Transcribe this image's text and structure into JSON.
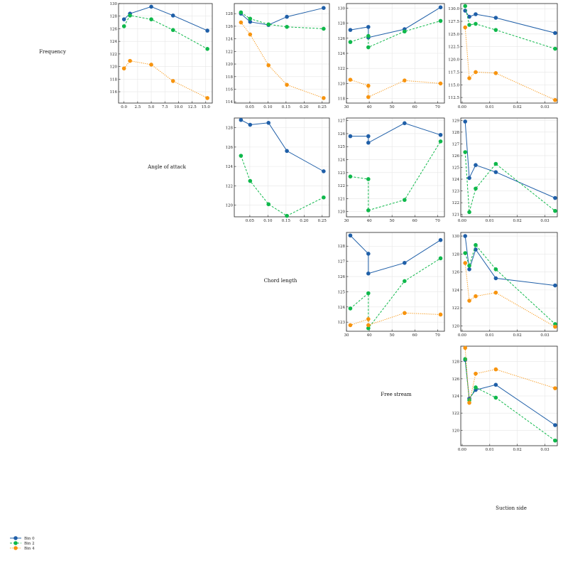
{
  "chart_data": {
    "type": "line",
    "layout": "upper-triangular scatter matrix",
    "series_names": [
      "Bin 0",
      "Bin 2",
      "Bin 4"
    ],
    "series_colors": [
      "#1f5fa8",
      "#0fb84b",
      "#f7940f"
    ],
    "series_styles": [
      "solid",
      "dashed",
      "dotted"
    ],
    "diagonal_labels": [
      "Frequency",
      "Angle of attack",
      "Chord length",
      "Free stream",
      "Suction side"
    ],
    "grid": true,
    "legend": "bottom-left",
    "panels": [
      {
        "row": 0,
        "col": 1,
        "xlim": [
          -1,
          16.2
        ],
        "ylim": [
          114.2,
          130
        ],
        "xticks": [
          0,
          2.5,
          5,
          7.5,
          10,
          12.5,
          15
        ],
        "xticklabels": [
          "0.0",
          "2.5",
          "5.0",
          "7.5",
          "10.0",
          "12.5",
          "15.0"
        ],
        "yticks": [
          116,
          118,
          120,
          122,
          124,
          126,
          128,
          130
        ],
        "yticklabels": [
          "116",
          "118",
          "120",
          "122",
          "124",
          "126",
          "128",
          "130"
        ],
        "series": [
          {
            "name": "Bin 0",
            "x": [
              0,
              1.1,
              5,
              9,
              15.3
            ],
            "y": [
              127.5,
              128.4,
              129.5,
              128.1,
              125.7
            ]
          },
          {
            "name": "Bin 2",
            "x": [
              0,
              1.1,
              5,
              9,
              15.3
            ],
            "y": [
              126.4,
              128.1,
              127.5,
              125.8,
              122.8
            ]
          },
          {
            "name": "Bin 4",
            "x": [
              0,
              1.1,
              5,
              9,
              15.3
            ],
            "y": [
              119.7,
              120.9,
              120.3,
              117.7,
              115.0
            ]
          }
        ]
      },
      {
        "row": 0,
        "col": 2,
        "xlim": [
          0.007,
          0.27
        ],
        "ylim": [
          113.8,
          129.6
        ],
        "xticks": [
          0.05,
          0.1,
          0.15,
          0.2,
          0.25
        ],
        "xticklabels": [
          "0.05",
          "0.10",
          "0.15",
          "0.20",
          "0.25"
        ],
        "yticks": [
          114,
          116,
          118,
          120,
          122,
          124,
          126,
          128
        ],
        "yticklabels": [
          "114",
          "116",
          "118",
          "120",
          "122",
          "124",
          "126",
          "128"
        ],
        "series": [
          {
            "name": "Bin 0",
            "x": [
              0.0254,
              0.0508,
              0.1016,
              0.1524,
              0.254
            ],
            "y": [
              128.0,
              126.7,
              126.2,
              127.5,
              128.9
            ]
          },
          {
            "name": "Bin 2",
            "x": [
              0.0254,
              0.0508,
              0.1016,
              0.1524,
              0.254
            ],
            "y": [
              128.2,
              127.2,
              126.3,
              125.9,
              125.6
            ]
          },
          {
            "name": "Bin 4",
            "x": [
              0.0254,
              0.0508,
              0.1016,
              0.1524,
              0.254
            ],
            "y": [
              126.6,
              124.7,
              119.8,
              116.7,
              114.6
            ]
          }
        ]
      },
      {
        "row": 0,
        "col": 3,
        "xlim": [
          30,
          73
        ],
        "ylim": [
          117.4,
          130.6
        ],
        "xticks": [
          30,
          40,
          50,
          60,
          70
        ],
        "xticklabels": [
          "30",
          "40",
          "50",
          "60",
          "70"
        ],
        "yticks": [
          118,
          120,
          122,
          124,
          126,
          128,
          130
        ],
        "yticklabels": [
          "118",
          "120",
          "122",
          "124",
          "126",
          "128",
          "130"
        ],
        "series": [
          {
            "name": "Bin 0",
            "x": [
              31.7,
              39.6,
              39.6,
              55.5,
              71.3
            ],
            "y": [
              127.1,
              127.5,
              126.1,
              127.2,
              130.1
            ]
          },
          {
            "name": "Bin 2",
            "x": [
              31.7,
              39.6,
              39.6,
              55.5,
              71.3
            ],
            "y": [
              125.5,
              126.3,
              124.8,
              126.9,
              128.3
            ]
          },
          {
            "name": "Bin 4",
            "x": [
              31.7,
              39.6,
              39.6,
              55.5,
              71.3
            ],
            "y": [
              120.5,
              119.7,
              118.2,
              120.4,
              120.0
            ]
          }
        ]
      },
      {
        "row": 0,
        "col": 4,
        "xlim": [
          -0.0005,
          0.0345
        ],
        "ylim": [
          111.4,
          131.0
        ],
        "xticks": [
          0.0,
          0.01,
          0.02,
          0.03
        ],
        "xticklabels": [
          "0.00",
          "0.01",
          "0.02",
          "0.03"
        ],
        "yticks": [
          112.5,
          115.0,
          117.5,
          120.0,
          122.5,
          125.0,
          127.5,
          130.0
        ],
        "yticklabels": [
          "112.5",
          "115.0",
          "117.5",
          "120.0",
          "122.5",
          "125.0",
          "127.5",
          "130.0"
        ],
        "series": [
          {
            "name": "Bin 0",
            "x": [
              0.0011,
              0.0026,
              0.0049,
              0.0122,
              0.0337
            ],
            "y": [
              129.6,
              128.4,
              128.9,
              128.2,
              125.2
            ]
          },
          {
            "name": "Bin 2",
            "x": [
              0.0011,
              0.0026,
              0.0049,
              0.0122,
              0.0337
            ],
            "y": [
              130.5,
              126.8,
              127.0,
              125.8,
              122.1
            ]
          },
          {
            "name": "Bin 4",
            "x": [
              0.0011,
              0.0026,
              0.0049,
              0.0122,
              0.0337
            ],
            "y": [
              126.3,
              116.3,
              117.5,
              117.3,
              112.0
            ]
          }
        ]
      },
      {
        "row": 1,
        "col": 2,
        "xlim": [
          0.007,
          0.27
        ],
        "ylim": [
          118.8,
          129.0
        ],
        "xticks": [
          0.05,
          0.1,
          0.15,
          0.2,
          0.25
        ],
        "xticklabels": [
          "0.05",
          "0.10",
          "0.15",
          "0.20",
          "0.25"
        ],
        "yticks": [
          120,
          122,
          124,
          126,
          128
        ],
        "yticklabels": [
          "120",
          "122",
          "124",
          "126",
          "128"
        ],
        "series": [
          {
            "name": "Bin 0",
            "x": [
              0.0254,
              0.0508,
              0.1016,
              0.1524,
              0.254
            ],
            "y": [
              128.8,
              128.3,
              128.5,
              125.6,
              123.5
            ]
          },
          {
            "name": "Bin 2",
            "x": [
              0.0254,
              0.0508,
              0.1016,
              0.1524,
              0.254
            ],
            "y": [
              125.1,
              122.5,
              120.1,
              118.9,
              120.8
            ]
          }
        ]
      },
      {
        "row": 1,
        "col": 3,
        "xlim": [
          30,
          73
        ],
        "ylim": [
          119.6,
          127.2
        ],
        "xticks": [
          30,
          40,
          50,
          60,
          70
        ],
        "xticklabels": [
          "30",
          "40",
          "50",
          "60",
          "70"
        ],
        "yticks": [
          120,
          121,
          122,
          123,
          124,
          125,
          126,
          127
        ],
        "yticklabels": [
          "120",
          "121",
          "122",
          "123",
          "124",
          "125",
          "126",
          "127"
        ],
        "series": [
          {
            "name": "Bin 0",
            "x": [
              31.7,
              39.6,
              39.6,
              55.5,
              71.3
            ],
            "y": [
              125.8,
              125.8,
              125.3,
              126.8,
              125.9
            ]
          },
          {
            "name": "Bin 2",
            "x": [
              31.7,
              39.6,
              39.6,
              55.5,
              71.3
            ],
            "y": [
              122.7,
              122.5,
              120.1,
              120.9,
              125.4
            ]
          }
        ]
      },
      {
        "row": 1,
        "col": 4,
        "xlim": [
          -0.0005,
          0.0345
        ],
        "ylim": [
          120.8,
          129.2
        ],
        "xticks": [
          0.0,
          0.01,
          0.02,
          0.03
        ],
        "xticklabels": [
          "0.00",
          "0.01",
          "0.02",
          "0.03"
        ],
        "yticks": [
          121,
          122,
          123,
          124,
          125,
          126,
          127,
          128,
          129
        ],
        "yticklabels": [
          "121",
          "122",
          "123",
          "124",
          "125",
          "126",
          "127",
          "128",
          "129"
        ],
        "series": [
          {
            "name": "Bin 0",
            "x": [
              0.0011,
              0.0026,
              0.0049,
              0.0122,
              0.0337
            ],
            "y": [
              128.9,
              124.1,
              125.2,
              124.6,
              122.4
            ]
          },
          {
            "name": "Bin 2",
            "x": [
              0.0011,
              0.0026,
              0.0049,
              0.0122,
              0.0337
            ],
            "y": [
              126.3,
              121.2,
              123.2,
              125.3,
              121.3
            ]
          }
        ]
      },
      {
        "row": 2,
        "col": 3,
        "xlim": [
          30,
          73
        ],
        "ylim": [
          122.4,
          128.9
        ],
        "xticks": [
          30,
          40,
          50,
          60,
          70
        ],
        "xticklabels": [
          "30",
          "40",
          "50",
          "60",
          "70"
        ],
        "yticks": [
          123,
          124,
          125,
          126,
          127,
          128
        ],
        "yticklabels": [
          "123",
          "124",
          "125",
          "126",
          "127",
          "128"
        ],
        "series": [
          {
            "name": "Bin 0",
            "x": [
              31.7,
              39.6,
              39.6,
              55.5,
              71.3
            ],
            "y": [
              128.7,
              127.5,
              126.2,
              126.9,
              128.4
            ]
          },
          {
            "name": "Bin 2",
            "x": [
              31.7,
              39.6,
              39.6,
              55.5,
              71.3
            ],
            "y": [
              123.9,
              124.9,
              122.6,
              125.7,
              127.2
            ]
          },
          {
            "name": "Bin 4",
            "x": [
              31.7,
              39.6,
              39.6,
              55.5,
              71.3
            ],
            "y": [
              122.8,
              123.2,
              122.8,
              123.6,
              123.5
            ]
          }
        ]
      },
      {
        "row": 2,
        "col": 4,
        "xlim": [
          -0.0005,
          0.0345
        ],
        "ylim": [
          119.4,
          130.4
        ],
        "xticks": [
          0.0,
          0.01,
          0.02,
          0.03
        ],
        "xticklabels": [
          "0.00",
          "0.01",
          "0.02",
          "0.03"
        ],
        "yticks": [
          120,
          122,
          124,
          126,
          128,
          130
        ],
        "yticklabels": [
          "120",
          "122",
          "124",
          "126",
          "128",
          "130"
        ],
        "series": [
          {
            "name": "Bin 0",
            "x": [
              0.0011,
              0.0026,
              0.0049,
              0.0122,
              0.0337
            ],
            "y": [
              130.0,
              126.3,
              128.5,
              125.3,
              124.5
            ]
          },
          {
            "name": "Bin 2",
            "x": [
              0.0011,
              0.0026,
              0.0049,
              0.0122,
              0.0337
            ],
            "y": [
              128.1,
              126.7,
              129.0,
              126.3,
              120.2
            ]
          },
          {
            "name": "Bin 4",
            "x": [
              0.0011,
              0.0026,
              0.0049,
              0.0122,
              0.0337
            ],
            "y": [
              127.0,
              122.8,
              123.3,
              123.7,
              119.9
            ]
          }
        ]
      },
      {
        "row": 3,
        "col": 4,
        "xlim": [
          -0.0005,
          0.0345
        ],
        "ylim": [
          118.2,
          129.8
        ],
        "xticks": [
          0.0,
          0.01,
          0.02,
          0.03
        ],
        "xticklabels": [
          "0.00",
          "0.01",
          "0.02",
          "0.03"
        ],
        "yticks": [
          120,
          122,
          124,
          126,
          128
        ],
        "yticklabels": [
          "120",
          "122",
          "124",
          "126",
          "128"
        ],
        "series": [
          {
            "name": "Bin 0",
            "x": [
              0.0011,
              0.0026,
              0.0049,
              0.0122,
              0.0337
            ],
            "y": [
              128.2,
              123.7,
              124.7,
              125.3,
              120.6
            ]
          },
          {
            "name": "Bin 2",
            "x": [
              0.0011,
              0.0026,
              0.0049,
              0.0122,
              0.0337
            ],
            "y": [
              128.3,
              123.5,
              125.0,
              123.8,
              118.8
            ]
          },
          {
            "name": "Bin 4",
            "x": [
              0.0011,
              0.0026,
              0.0049,
              0.0122,
              0.0337
            ],
            "y": [
              129.6,
              123.2,
              126.6,
              127.1,
              124.9
            ]
          }
        ]
      }
    ]
  }
}
